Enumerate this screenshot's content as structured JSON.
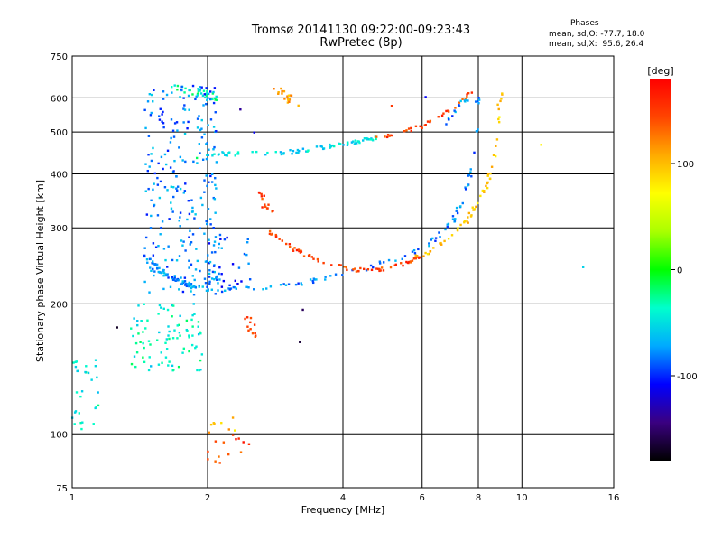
{
  "header": {
    "title": "Tromsø 20141130 09:22:00-09:23:43",
    "subtitle": "RwPretec (8p)",
    "phases_heading": "Phases",
    "phases_o": "mean, sd,O: -77.7, 18.0",
    "phases_x": "mean, sd,X:  95.6, 26.4"
  },
  "chart_data": {
    "type": "scatter",
    "title": "Tromsø 20141130 09:22:00-09:23:43",
    "subtitle": "RwPretec (8p)",
    "xlabel": "Frequency [MHz]",
    "ylabel": "Stationary phase Virtual Height [km]",
    "x_scale": "log",
    "y_scale": "log",
    "xlim": [
      1,
      16
    ],
    "ylim": [
      75,
      750
    ],
    "x_ticks": [
      1,
      2,
      4,
      6,
      8,
      10,
      16
    ],
    "y_ticks": [
      75,
      100,
      200,
      300,
      400,
      500,
      600,
      750
    ],
    "grid": true,
    "colorbar": {
      "label": "[deg]",
      "range": [
        -180,
        180
      ],
      "ticks": [
        100,
        0,
        -100
      ],
      "colors": [
        "#000000",
        "#3a0080",
        "#0000ff",
        "#00aaff",
        "#00ffcc",
        "#00ff00",
        "#aaff00",
        "#ffff00",
        "#ffaa00",
        "#ff4400",
        "#ff0000"
      ]
    },
    "series": [
      {
        "kind": "curve",
        "phase": -80,
        "spread": 0.012,
        "n": 90,
        "points": [
          [
            1.92,
            215
          ],
          [
            2.1,
            215
          ],
          [
            2.6,
            217
          ],
          [
            3.2,
            222
          ],
          [
            3.8,
            232
          ],
          [
            4.6,
            243
          ],
          [
            5.5,
            258
          ],
          [
            6.3,
            278
          ],
          [
            7.0,
            310
          ],
          [
            7.5,
            360
          ],
          [
            7.8,
            430
          ],
          [
            7.95,
            520
          ],
          [
            8.0,
            620
          ]
        ]
      },
      {
        "kind": "curve",
        "phase": -80,
        "spread": 0.012,
        "n": 60,
        "points": [
          [
            1.45,
            260
          ],
          [
            1.6,
            235
          ],
          [
            1.75,
            225
          ],
          [
            1.9,
            218
          ]
        ]
      },
      {
        "kind": "curve",
        "phase": 150,
        "spread": 0.01,
        "n": 70,
        "points": [
          [
            2.75,
            295
          ],
          [
            3.1,
            268
          ],
          [
            3.6,
            250
          ],
          [
            4.2,
            240
          ],
          [
            4.8,
            240
          ],
          [
            5.4,
            246
          ],
          [
            6.0,
            258
          ]
        ]
      },
      {
        "kind": "curve",
        "phase": 95,
        "spread": 0.012,
        "n": 60,
        "points": [
          [
            5.8,
            255
          ],
          [
            6.4,
            268
          ],
          [
            7.0,
            290
          ],
          [
            7.5,
            310
          ],
          [
            8.0,
            340
          ],
          [
            8.4,
            380
          ],
          [
            8.7,
            440
          ],
          [
            8.9,
            520
          ],
          [
            8.95,
            640
          ]
        ]
      },
      {
        "kind": "curve",
        "phase": -50,
        "spread": 0.01,
        "n": 80,
        "points": [
          [
            1.9,
            445
          ],
          [
            2.4,
            445
          ],
          [
            3.0,
            448
          ],
          [
            3.5,
            458
          ],
          [
            4.2,
            472
          ],
          [
            4.8,
            485
          ]
        ]
      },
      {
        "kind": "curve",
        "phase": 150,
        "spread": 0.01,
        "n": 35,
        "points": [
          [
            4.6,
            480
          ],
          [
            5.2,
            495
          ],
          [
            6.0,
            515
          ],
          [
            6.8,
            555
          ],
          [
            7.4,
            590
          ],
          [
            7.7,
            615
          ]
        ]
      },
      {
        "kind": "curve",
        "phase": -80,
        "spread": 0.01,
        "n": 15,
        "points": [
          [
            6.7,
            520
          ],
          [
            7.0,
            545
          ],
          [
            7.3,
            580
          ],
          [
            7.6,
            600
          ]
        ]
      },
      {
        "kind": "curve",
        "phase": -30,
        "spread": 0.02,
        "n": 30,
        "points": [
          [
            1.65,
            640
          ],
          [
            1.9,
            620
          ],
          [
            2.1,
            600
          ]
        ]
      },
      {
        "kind": "curve",
        "phase": 110,
        "spread": 0.02,
        "n": 18,
        "points": [
          [
            2.85,
            630
          ],
          [
            3.0,
            600
          ],
          [
            3.15,
            580
          ]
        ]
      },
      {
        "kind": "curve",
        "phase": 150,
        "spread": 0.015,
        "n": 14,
        "points": [
          [
            2.6,
            365
          ],
          [
            2.68,
            340
          ],
          [
            2.78,
            325
          ]
        ]
      },
      {
        "kind": "curve",
        "phase": 150,
        "spread": 0.02,
        "n": 12,
        "points": [
          [
            2.45,
            185
          ],
          [
            2.5,
            175
          ],
          [
            2.55,
            170
          ]
        ]
      },
      {
        "kind": "cloud",
        "phase": -80,
        "n": 260,
        "x": [
          1.45,
          2.1
        ],
        "y": [
          210,
          640
        ]
      },
      {
        "kind": "cloud",
        "phase": -40,
        "n": 90,
        "x": [
          1.35,
          1.95
        ],
        "y": [
          140,
          200
        ]
      },
      {
        "kind": "cloud",
        "phase": -90,
        "n": 40,
        "x": [
          2.0,
          2.5
        ],
        "y": [
          215,
          290
        ]
      },
      {
        "kind": "cloud",
        "phase": -40,
        "n": 30,
        "x": [
          1.0,
          1.15
        ],
        "y": [
          100,
          150
        ]
      },
      {
        "kind": "cloud",
        "phase": 150,
        "n": 14,
        "x": [
          1.85,
          2.5
        ],
        "y": [
          85,
          100
        ]
      },
      {
        "kind": "cloud",
        "phase": 100,
        "n": 8,
        "x": [
          1.95,
          2.3
        ],
        "y": [
          100,
          110
        ]
      },
      {
        "kind": "cloud",
        "phase": 0,
        "n": 10,
        "x": [
          1.0,
          16.0
        ],
        "y": [
          80,
          700
        ]
      }
    ]
  }
}
